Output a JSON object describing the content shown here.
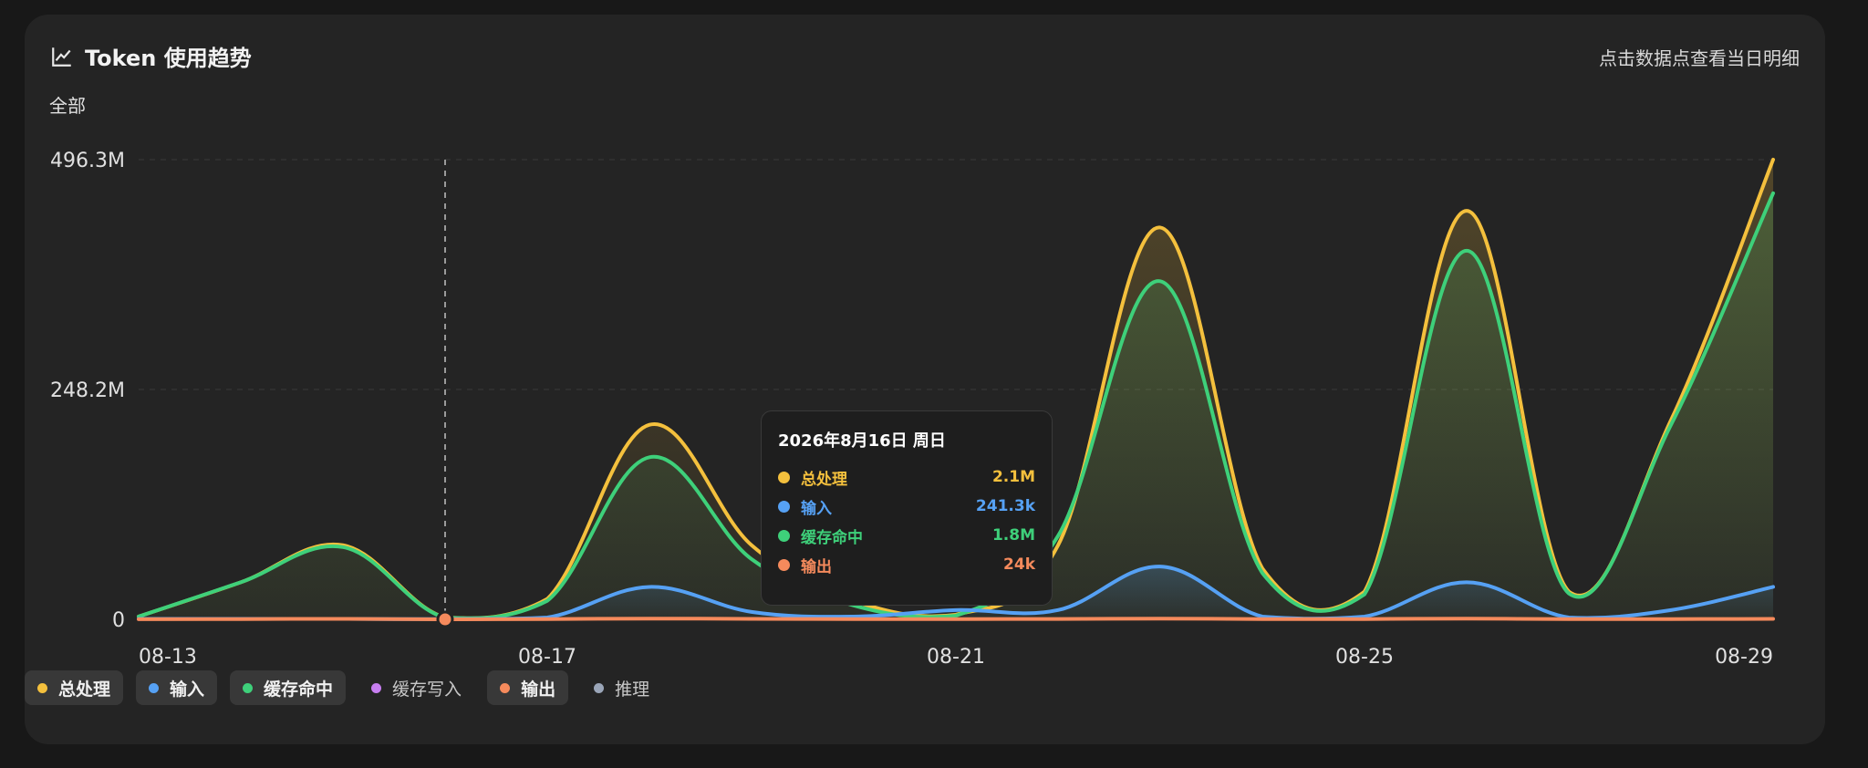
{
  "header": {
    "title": "Token 使用趋势",
    "hint": "点击数据点查看当日明细"
  },
  "filter_label": "全部",
  "tooltip": {
    "date": "2026年8月16日 周日",
    "rows": [
      {
        "label": "总处理",
        "value": "2.1M",
        "color": "#f4c03d"
      },
      {
        "label": "输入",
        "value": "241.3k",
        "color": "#56a1f4"
      },
      {
        "label": "缓存命中",
        "value": "1.8M",
        "color": "#3ed07a"
      },
      {
        "label": "输出",
        "value": "24k",
        "color": "#f58a5c"
      }
    ]
  },
  "legend": [
    {
      "label": "总处理",
      "color": "#f4c03d",
      "active": true
    },
    {
      "label": "输入",
      "color": "#56a1f4",
      "active": true
    },
    {
      "label": "缓存命中",
      "color": "#3ed07a",
      "active": true
    },
    {
      "label": "缓存写入",
      "color": "#c77ef0",
      "active": false
    },
    {
      "label": "输出",
      "color": "#f58a5c",
      "active": true
    },
    {
      "label": "推理",
      "color": "#9aa5b8",
      "active": false
    }
  ],
  "chart_data": {
    "type": "area",
    "title": "Token 使用趋势",
    "x": [
      "08-13",
      "08-14",
      "08-15",
      "08-16",
      "08-17",
      "08-18",
      "08-19",
      "08-20",
      "08-21",
      "08-22",
      "08-23",
      "08-24",
      "08-25",
      "08-26",
      "08-27",
      "08-28",
      "08-29"
    ],
    "x_tick_labels": [
      "08-13",
      "08-17",
      "08-21",
      "08-25",
      "08-29"
    ],
    "y_tick_labels": [
      "0",
      "248.2M",
      "496.3M"
    ],
    "ylim": [
      0,
      496.3
    ],
    "y_unit": "M tokens",
    "grid": true,
    "legend_position": "bottom-left",
    "highlight_x": "08-16",
    "series": [
      {
        "name": "总处理",
        "color": "#f4c03d",
        "values": [
          3,
          40,
          80,
          2.1,
          22,
          210,
          80,
          20,
          5,
          80,
          423,
          55,
          30,
          441,
          30,
          215,
          496.3
        ]
      },
      {
        "name": "缓存命中",
        "color": "#3ed07a",
        "values": [
          3,
          40,
          78,
          1.8,
          20,
          175,
          65,
          15,
          4,
          90,
          365,
          50,
          27,
          398,
          28,
          210,
          460
        ]
      },
      {
        "name": "输入",
        "color": "#56a1f4",
        "values": [
          0.5,
          0.5,
          0.5,
          0.24,
          2,
          35,
          8,
          3,
          10,
          10,
          57,
          3,
          3,
          40,
          2,
          10,
          35
        ]
      },
      {
        "name": "输出",
        "color": "#f58a5c",
        "values": [
          0.1,
          0.3,
          0.5,
          0.024,
          0.3,
          0.8,
          0.5,
          0.3,
          0.3,
          0.4,
          0.8,
          0.3,
          0.3,
          0.8,
          0.2,
          0.3,
          0.5
        ]
      }
    ]
  }
}
